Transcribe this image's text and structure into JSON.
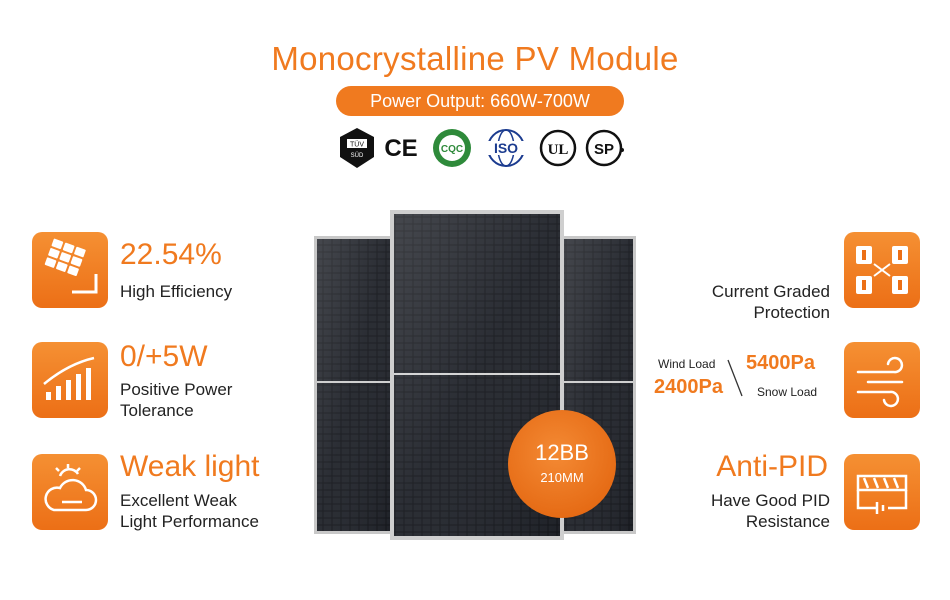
{
  "header": {
    "title": "Monocrystalline PV Module",
    "power_output": "Power Output:  660W-700W"
  },
  "certifications": [
    {
      "label": "TÜV",
      "sub": "SÜD",
      "icon": "tuv-sud-icon"
    },
    {
      "label": "CE",
      "icon": "ce-mark-icon"
    },
    {
      "label": "CQC",
      "icon": "cqc-icon"
    },
    {
      "label": "ISO",
      "icon": "iso-icon"
    },
    {
      "label": "UL",
      "icon": "ul-icon"
    },
    {
      "label": "SP",
      "icon": "csa-icon"
    }
  ],
  "left_features": [
    {
      "headline": "22.54%",
      "line1": "High Efficiency",
      "line2": "",
      "icon": "solar-panel-icon"
    },
    {
      "headline": "0/+5W",
      "line1": "Positive Power",
      "line2": "Tolerance",
      "icon": "signal-bars-icon"
    },
    {
      "headline": "Weak light",
      "line1": "Excellent Weak",
      "line2": "Light Performance",
      "icon": "cloud-sun-icon"
    }
  ],
  "right_features": {
    "graded": {
      "line1": "Current Graded",
      "line2": "Protection",
      "icon": "graded-cells-icon"
    },
    "load": {
      "wind_label": "Wind Load",
      "wind_value": "5400Pa",
      "snow_value": "2400Pa",
      "snow_label": "Snow Load",
      "icon": "wind-icon"
    },
    "pid": {
      "headline": "Anti-PID",
      "line1": "Have Good PID",
      "line2": "Resistance",
      "icon": "circuit-icon"
    }
  },
  "badge": {
    "line1": "12BB",
    "line2": "210MM"
  },
  "colors": {
    "accent": "#f07a1f",
    "text": "#222222",
    "panel": "#1a1c22"
  }
}
